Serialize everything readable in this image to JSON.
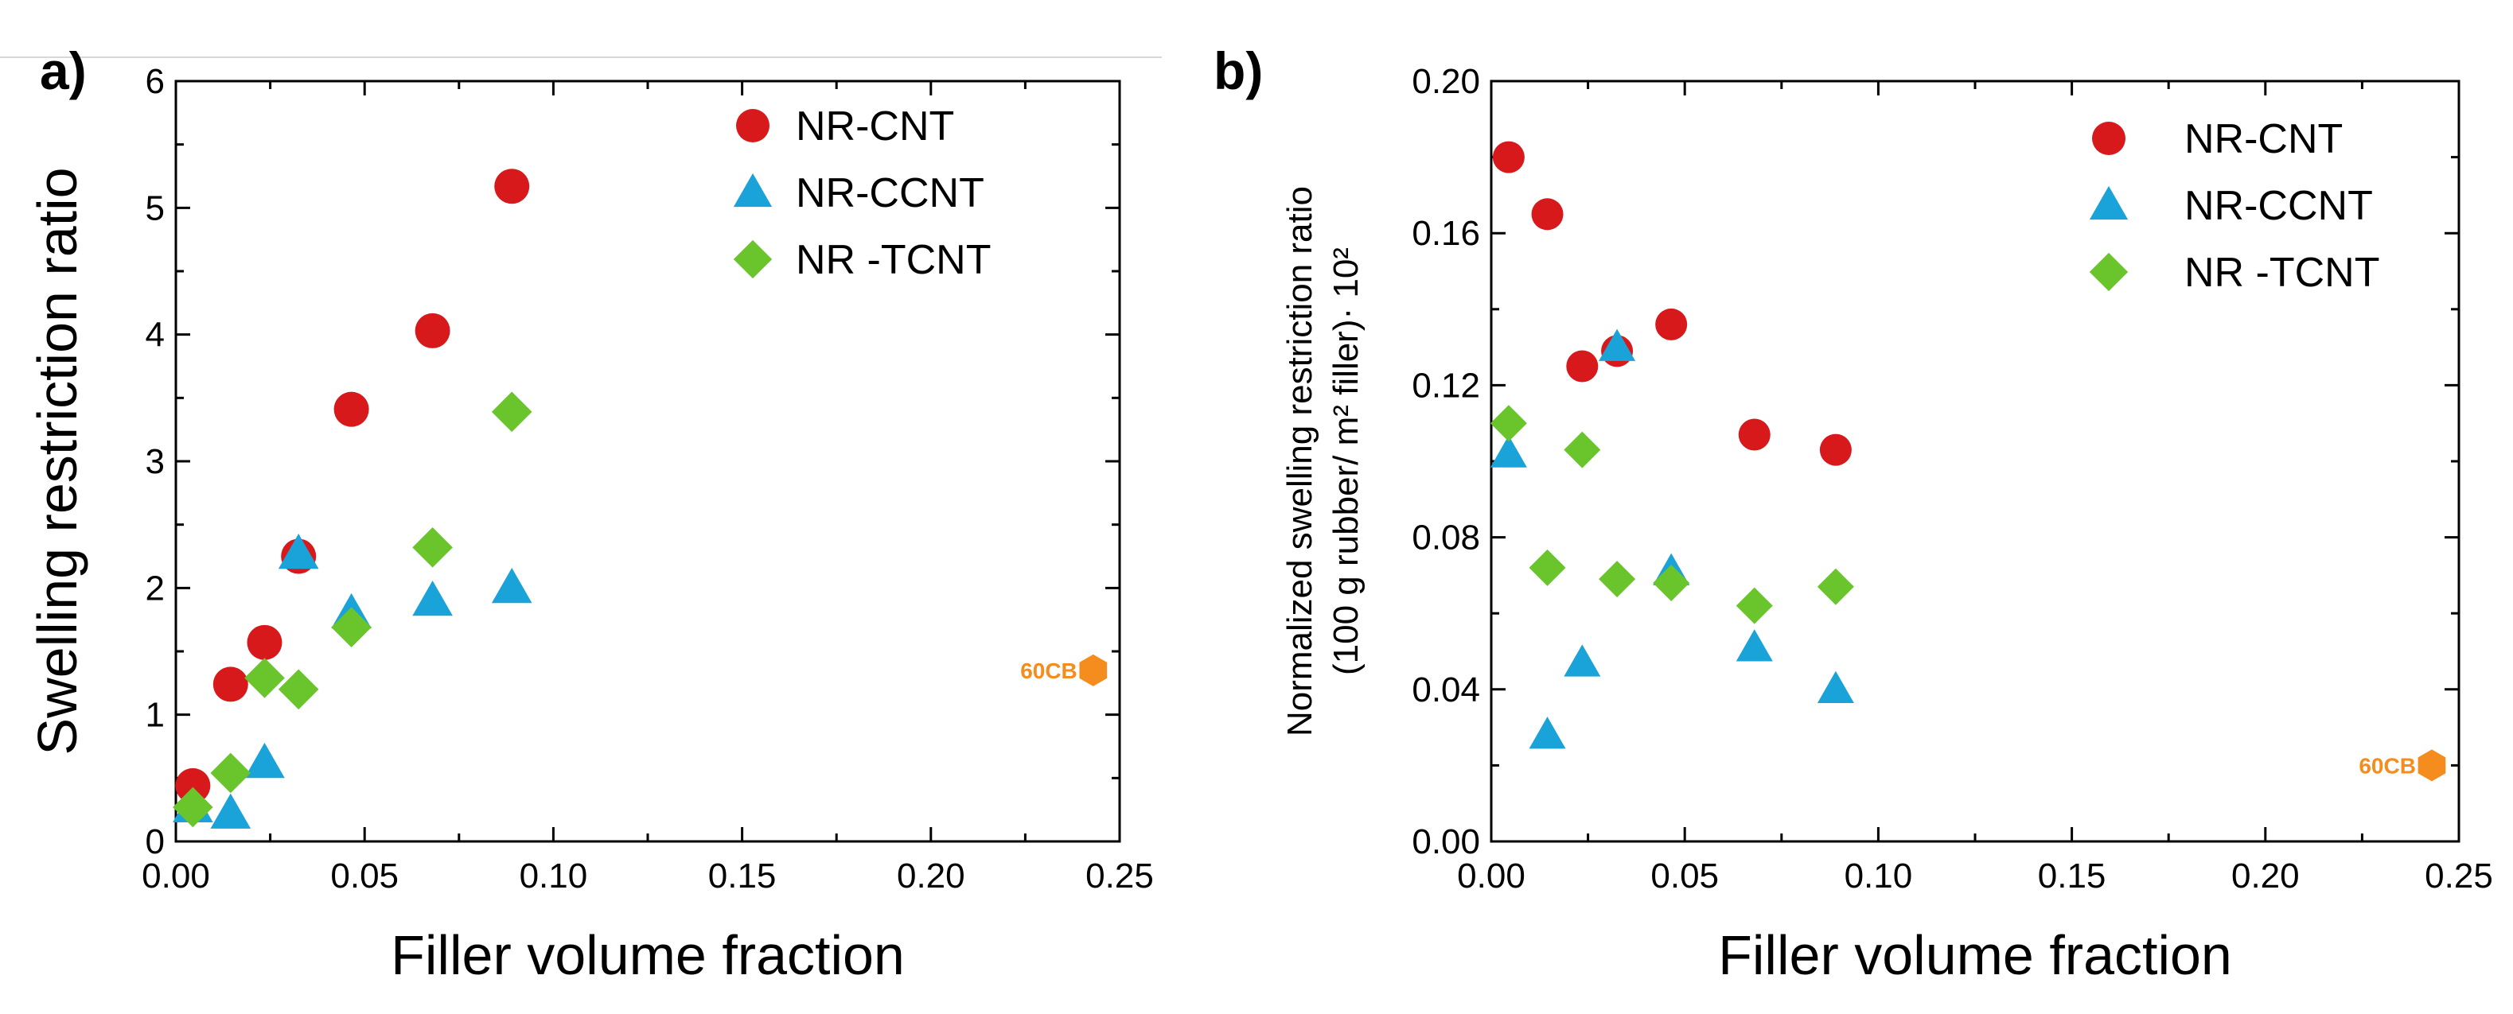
{
  "chart_data": [
    {
      "panel_label": "a)",
      "type": "scatter",
      "xlabel": "Filler volume fraction",
      "ylabel": "Swelling restriction ratio",
      "ylabel_line2": "",
      "xlim": [
        0,
        0.25
      ],
      "ylim": [
        0,
        6
      ],
      "xticks": [
        0.0,
        0.05,
        0.1,
        0.15,
        0.2,
        0.25
      ],
      "xtick_labels": [
        "0.00",
        "0.05",
        "0.10",
        "0.15",
        "0.20",
        "0.25"
      ],
      "yticks": [
        0,
        1,
        2,
        3,
        4,
        5,
        6
      ],
      "ytick_labels": [
        "0",
        "1",
        "2",
        "3",
        "4",
        "5",
        "6"
      ],
      "legend_position": "top-right",
      "series": [
        {
          "name": "NR-CNT",
          "marker": "circle",
          "color": "#d7191c",
          "x": [
            0.0045,
            0.0145,
            0.0235,
            0.0325,
            0.0465,
            0.068,
            0.089
          ],
          "y": [
            0.44,
            1.24,
            1.57,
            2.25,
            3.41,
            4.03,
            5.17
          ]
        },
        {
          "name": "NR-CCNT",
          "marker": "triangle",
          "color": "#1aa3d8",
          "x": [
            0.0045,
            0.0145,
            0.0235,
            0.0325,
            0.0465,
            0.068,
            0.089
          ],
          "y": [
            0.27,
            0.22,
            0.62,
            2.27,
            1.8,
            1.9,
            2.0
          ]
        },
        {
          "name": "NR -TCNT",
          "marker": "diamond",
          "color": "#6ac42c",
          "x": [
            0.0045,
            0.0145,
            0.0235,
            0.0325,
            0.0465,
            0.068,
            0.089
          ],
          "y": [
            0.27,
            0.54,
            1.29,
            1.2,
            1.69,
            2.32,
            3.39
          ]
        }
      ],
      "annotations": [
        {
          "text": "60CB",
          "x": 0.243,
          "y": 1.35,
          "marker": "hexagon",
          "color": "#f58c1e"
        }
      ]
    },
    {
      "panel_label": "b)",
      "type": "scatter",
      "xlabel": "Filler volume fraction",
      "ylabel": "Normalized swelling restriction ratio",
      "ylabel_line2": "(100 g rubber/ m² filler)· 10²",
      "xlim": [
        0,
        0.25
      ],
      "ylim": [
        0,
        0.2
      ],
      "xticks": [
        0.0,
        0.05,
        0.1,
        0.15,
        0.2,
        0.25
      ],
      "xtick_labels": [
        "0.00",
        "0.05",
        "0.10",
        "0.15",
        "0.20",
        "0.25"
      ],
      "yticks": [
        0.0,
        0.04,
        0.08,
        0.12,
        0.16,
        0.2
      ],
      "ytick_labels": [
        "0.00",
        "0.04",
        "0.08",
        "0.12",
        "0.16",
        "0.20"
      ],
      "legend_position": "top-right",
      "series": [
        {
          "name": "NR-CNT",
          "marker": "circle",
          "color": "#d7191c",
          "x": [
            0.0045,
            0.0145,
            0.0235,
            0.0325,
            0.0465,
            0.068,
            0.089
          ],
          "y": [
            0.18,
            0.165,
            0.125,
            0.129,
            0.136,
            0.107,
            0.103
          ]
        },
        {
          "name": "NR-CCNT",
          "marker": "triangle",
          "color": "#1aa3d8",
          "x": [
            0.0045,
            0.0145,
            0.0235,
            0.0325,
            0.0465,
            0.068,
            0.089
          ],
          "y": [
            0.102,
            0.028,
            0.047,
            0.13,
            0.071,
            0.051,
            0.04
          ]
        },
        {
          "name": "NR -TCNT",
          "marker": "diamond",
          "color": "#6ac42c",
          "x": [
            0.0045,
            0.0145,
            0.0235,
            0.0325,
            0.0465,
            0.068,
            0.089
          ],
          "y": [
            0.11,
            0.072,
            0.103,
            0.069,
            0.068,
            0.062,
            0.067
          ]
        }
      ],
      "annotations": [
        {
          "text": "60CB",
          "x": 0.243,
          "y": 0.02,
          "marker": "hexagon",
          "color": "#f58c1e"
        }
      ]
    }
  ]
}
